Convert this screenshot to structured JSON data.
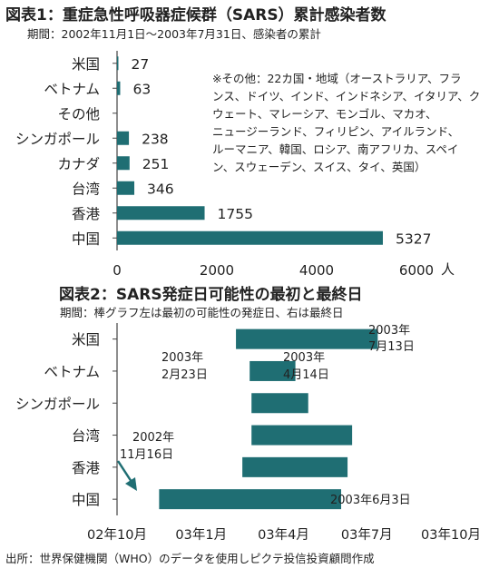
{
  "colors": {
    "bar": "#1f6e73",
    "axis": "#444444",
    "text": "#222222"
  },
  "chart1": {
    "title": "図表1：重症急性呼吸器症候群（SARS）累計感染者数",
    "subtitle": "期間：2002年11月1日〜2003年7月31日、感染者の累計",
    "unit": "人",
    "note": [
      "※その他：22カ国・地域（オーストラリア、フラ",
      "ンス、ドイツ、インド、インドネシア、イタリア、ク",
      "ウェート、マレーシア、モンゴル、マカオ、",
      "ニュージーランド、フィリピン、アイルランド、",
      "ルーマニア、韓国、ロシア、南アフリカ、スペイ",
      "ン、スウェーデン、スイス、タイ、英国）"
    ]
  },
  "chart2": {
    "title": "図表2：SARS発症日可能性の最初と最終日",
    "subtitle": "期間：棒グラフ左は最初の可能性の発症日、右は最終日",
    "annotations": {
      "usa_end": [
        "2003年",
        "7月13日"
      ],
      "vn_start": [
        "2003年",
        "2月23日"
      ],
      "vn_end": [
        "2003年",
        "4月14日"
      ],
      "cn_start": [
        "2002年",
        "11月16日"
      ],
      "cn_end": "2003年6月3日"
    }
  },
  "source": "出所：世界保健機関（WHO）のデータを使用しピクテ投信投資顧問作成",
  "chart_data": [
    {
      "type": "bar",
      "orientation": "horizontal",
      "title": "図表1：重症急性呼吸器症候群（SARS）累計感染者数",
      "categories": [
        "米国",
        "ベトナム",
        "その他",
        "シンガポール",
        "カナダ",
        "台湾",
        "香港",
        "中国"
      ],
      "values": [
        27,
        63,
        0,
        238,
        251,
        346,
        1755,
        5327
      ],
      "data_labels": [
        "27",
        "63",
        "",
        "238",
        "251",
        "346",
        "1755",
        "5327"
      ],
      "xlim": [
        0,
        6000
      ],
      "xticks": [
        "0",
        "2000",
        "4000",
        "6000"
      ],
      "xlabel": "人",
      "grid": false
    },
    {
      "type": "bar",
      "orientation": "horizontal-range",
      "title": "図表2：SARS発症日可能性の最初と最終日",
      "categories": [
        "米国",
        "ベトナム",
        "シンガポール",
        "台湾",
        "香港",
        "中国"
      ],
      "ranges": [
        [
          "2003-02-08",
          "2003-07-13"
        ],
        [
          "2003-02-23",
          "2003-04-14"
        ],
        [
          "2003-02-25",
          "2003-04-28"
        ],
        [
          "2003-02-25",
          "2003-06-15"
        ],
        [
          "2003-02-15",
          "2003-06-10"
        ],
        [
          "2002-11-16",
          "2003-06-03"
        ]
      ],
      "xlim": [
        "2002-10-01",
        "2003-10-01"
      ],
      "xticks": [
        "02年10月",
        "03年1月",
        "03年4月",
        "03年7月",
        "03年10月"
      ],
      "grid": false
    }
  ]
}
